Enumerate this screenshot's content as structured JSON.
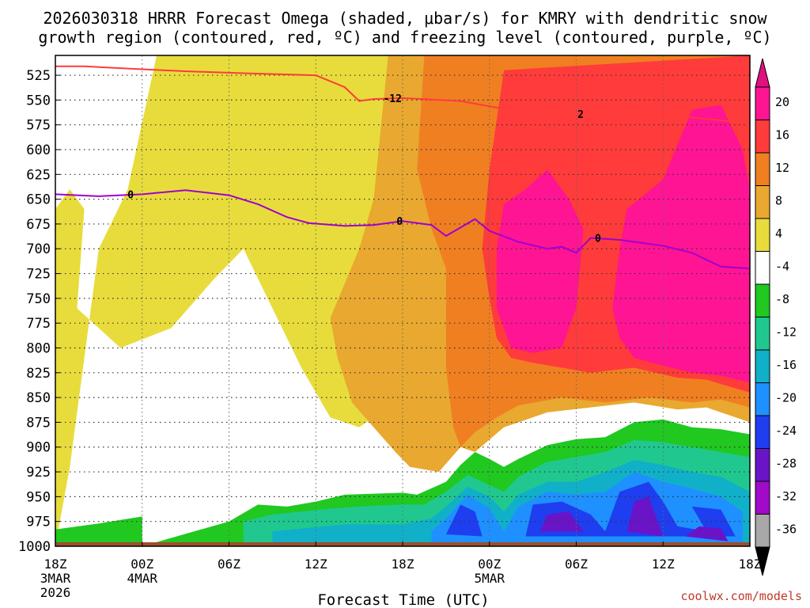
{
  "chart_data": {
    "type": "heatmap",
    "title_line1": "2026030318 HRRR Forecast Omega (shaded, μbar/s) for KMRY with dendritic snow",
    "title_line2": "growth region (contoured, red, ºC) and freezing level (contoured, purple, ºC)",
    "xlabel": "Forecast Time (UTC)",
    "ylabel": "",
    "credit": "coolwx.com/models",
    "x_range_hours": [
      0,
      48
    ],
    "y_range_hpa": [
      1000,
      505
    ],
    "y_ticks": [
      525,
      550,
      575,
      600,
      625,
      650,
      675,
      700,
      725,
      750,
      775,
      800,
      825,
      850,
      875,
      900,
      925,
      950,
      975,
      1000
    ],
    "x_ticks": [
      {
        "hour": 0,
        "label": "18Z",
        "sub1": "3MAR",
        "sub2": "2026"
      },
      {
        "hour": 6,
        "label": "00Z",
        "sub1": "4MAR",
        "sub2": ""
      },
      {
        "hour": 12,
        "label": "06Z",
        "sub1": "",
        "sub2": ""
      },
      {
        "hour": 18,
        "label": "12Z",
        "sub1": "",
        "sub2": ""
      },
      {
        "hour": 24,
        "label": "18Z",
        "sub1": "",
        "sub2": ""
      },
      {
        "hour": 30,
        "label": "00Z",
        "sub1": "5MAR",
        "sub2": ""
      },
      {
        "hour": 36,
        "label": "06Z",
        "sub1": "",
        "sub2": ""
      },
      {
        "hour": 42,
        "label": "12Z",
        "sub1": "",
        "sub2": ""
      },
      {
        "hour": 48,
        "label": "18Z",
        "sub1": "",
        "sub2": ""
      }
    ],
    "colorbar": {
      "labels": [
        "20",
        "16",
        "12",
        "8",
        "4",
        "-4",
        "-8",
        "-12",
        "-16",
        "-20",
        "-24",
        "-28",
        "-32",
        "-36"
      ],
      "colors": [
        "#ff1493",
        "#ff3b3b",
        "#f07f22",
        "#e9a82f",
        "#e8dc3c",
        "#ffffff",
        "#20c820",
        "#20c890",
        "#10b0c8",
        "#1e90ff",
        "#1e3ef0",
        "#6a14c8",
        "#a00ac8",
        "#a8a8a8"
      ],
      "over_color": "#e0107f",
      "under_color": "#000000"
    },
    "series": [
      {
        "name": "dendritic snow growth -12°C",
        "color": "#ff3b3b",
        "label": "-12",
        "points": [
          [
            0,
            516
          ],
          [
            2,
            516
          ],
          [
            6,
            519
          ],
          [
            9,
            521
          ],
          [
            13,
            523
          ],
          [
            18,
            525
          ],
          [
            20,
            537
          ],
          [
            21,
            551
          ],
          [
            22,
            549
          ],
          [
            24,
            548
          ],
          [
            28,
            551
          ],
          [
            31,
            559
          ],
          [
            36,
            564
          ],
          [
            38,
            565
          ],
          [
            40,
            563
          ],
          [
            43,
            566
          ],
          [
            47,
            572
          ],
          [
            48,
            575
          ]
        ]
      },
      {
        "name": "dendritic snow growth contour 2",
        "color": "#ff3b3b",
        "label": "2",
        "points": [
          [
            36,
            564
          ]
        ]
      },
      {
        "name": "freezing level 0°C",
        "color": "#a000d0",
        "label": "0",
        "points": [
          [
            0,
            645
          ],
          [
            3,
            647
          ],
          [
            6,
            645
          ],
          [
            9,
            641
          ],
          [
            12,
            646
          ],
          [
            14,
            655
          ],
          [
            16,
            668
          ],
          [
            17.5,
            674
          ],
          [
            20,
            677
          ],
          [
            22,
            676
          ],
          [
            24,
            672
          ],
          [
            26,
            676
          ],
          [
            27,
            687
          ],
          [
            29,
            670
          ],
          [
            30,
            682
          ],
          [
            32,
            693
          ],
          [
            34,
            700
          ],
          [
            35,
            698
          ],
          [
            36,
            704
          ],
          [
            37,
            689
          ],
          [
            39,
            691
          ],
          [
            42,
            697
          ],
          [
            44,
            704
          ],
          [
            46,
            718
          ],
          [
            48,
            720
          ]
        ]
      }
    ],
    "omega_regions": [
      {
        "value": 4,
        "color": "#e8dc3c",
        "points": [
          [
            -0.5,
            1000
          ],
          [
            -0.5,
            660
          ],
          [
            1,
            640
          ],
          [
            2,
            660
          ],
          [
            1.5,
            760
          ],
          [
            4.5,
            800
          ],
          [
            8,
            780
          ],
          [
            11,
            730
          ],
          [
            13,
            700
          ],
          [
            15,
            760
          ],
          [
            17,
            820
          ],
          [
            19,
            870
          ],
          [
            21,
            880
          ],
          [
            23,
            860
          ],
          [
            25,
            900
          ],
          [
            27,
            900
          ],
          [
            28,
            890
          ],
          [
            30,
            880
          ],
          [
            31,
            870
          ],
          [
            33,
            860
          ],
          [
            35,
            855
          ],
          [
            38,
            855
          ],
          [
            40,
            852
          ],
          [
            42,
            855
          ],
          [
            45,
            860
          ],
          [
            48,
            862
          ],
          [
            48,
            505
          ],
          [
            7,
            505
          ],
          [
            5,
            640
          ],
          [
            3,
            700
          ],
          [
            1,
            920
          ]
        ]
      },
      {
        "value": 8,
        "color": "#e9a82f",
        "points": [
          [
            23,
            505
          ],
          [
            48,
            505
          ],
          [
            48,
            875
          ],
          [
            45,
            860
          ],
          [
            43,
            862
          ],
          [
            40,
            855
          ],
          [
            37,
            860
          ],
          [
            34,
            865
          ],
          [
            31,
            880
          ],
          [
            29,
            905
          ],
          [
            28,
            900
          ],
          [
            26.5,
            925
          ],
          [
            24.5,
            920
          ],
          [
            23.5,
            905
          ],
          [
            22,
            880
          ],
          [
            20.5,
            855
          ],
          [
            19.5,
            810
          ],
          [
            19,
            770
          ],
          [
            20,
            735
          ],
          [
            21,
            700
          ],
          [
            22,
            650
          ]
        ]
      },
      {
        "value": 12,
        "color": "#f07f22",
        "points": [
          [
            25.5,
            505
          ],
          [
            48,
            505
          ],
          [
            48,
            860
          ],
          [
            46,
            852
          ],
          [
            44,
            855
          ],
          [
            41,
            850
          ],
          [
            38,
            855
          ],
          [
            35,
            850
          ],
          [
            32,
            858
          ],
          [
            30.5,
            870
          ],
          [
            29,
            885
          ],
          [
            28,
            900
          ],
          [
            27.5,
            880
          ],
          [
            27,
            820
          ],
          [
            27,
            760
          ],
          [
            27,
            720
          ],
          [
            26,
            680
          ],
          [
            25,
            620
          ]
        ]
      },
      {
        "value": 16,
        "color": "#ff3b3b",
        "points": [
          [
            31,
            520
          ],
          [
            48,
            505
          ],
          [
            48,
            845
          ],
          [
            45,
            832
          ],
          [
            43,
            830
          ],
          [
            40,
            820
          ],
          [
            37,
            825
          ],
          [
            35,
            820
          ],
          [
            33,
            815
          ],
          [
            31.5,
            810
          ],
          [
            30.5,
            790
          ],
          [
            30,
            750
          ],
          [
            29.5,
            700
          ],
          [
            30,
            620
          ]
        ]
      },
      {
        "value": 20,
        "color": "#ff1493",
        "points": [
          [
            39.5,
            660
          ],
          [
            42,
            630
          ],
          [
            44,
            560
          ],
          [
            46,
            555
          ],
          [
            47.5,
            600
          ],
          [
            48,
            640
          ],
          [
            48,
            835
          ],
          [
            46,
            828
          ],
          [
            44,
            825
          ],
          [
            42,
            818
          ],
          [
            40,
            810
          ],
          [
            39,
            790
          ],
          [
            38.5,
            760
          ],
          [
            39,
            700
          ]
        ]
      },
      {
        "value": 20,
        "color": "#ff1493",
        "points": [
          [
            31,
            655
          ],
          [
            32.5,
            640
          ],
          [
            34,
            620
          ],
          [
            35.5,
            650
          ],
          [
            36.5,
            680
          ],
          [
            36,
            760
          ],
          [
            35,
            800
          ],
          [
            33,
            805
          ],
          [
            31.5,
            800
          ],
          [
            30.5,
            760
          ],
          [
            30.5,
            700
          ]
        ]
      },
      {
        "value": -4,
        "color": "#20c820",
        "points": [
          [
            -0.5,
            1000
          ],
          [
            0,
            983
          ],
          [
            3,
            977
          ],
          [
            6,
            970
          ],
          [
            6,
            1000
          ],
          [
            12,
            975
          ],
          [
            14,
            958
          ],
          [
            16,
            960
          ],
          [
            18,
            955
          ],
          [
            20,
            948
          ],
          [
            22,
            947
          ],
          [
            24,
            946
          ],
          [
            25,
            948
          ],
          [
            27,
            935
          ],
          [
            28,
            918
          ],
          [
            29,
            905
          ],
          [
            30,
            912
          ],
          [
            31,
            920
          ],
          [
            32,
            912
          ],
          [
            34,
            898
          ],
          [
            36,
            892
          ],
          [
            38,
            890
          ],
          [
            40,
            875
          ],
          [
            42,
            872
          ],
          [
            44,
            880
          ],
          [
            46,
            882
          ],
          [
            48,
            887
          ],
          [
            48,
            1000
          ]
        ]
      },
      {
        "value": -8,
        "color": "#20c890",
        "points": [
          [
            13,
            975
          ],
          [
            15,
            968
          ],
          [
            17,
            965
          ],
          [
            19,
            962
          ],
          [
            21,
            960
          ],
          [
            24,
            958
          ],
          [
            25.5,
            958
          ],
          [
            27,
            945
          ],
          [
            28.5,
            928
          ],
          [
            29.5,
            935
          ],
          [
            31,
            945
          ],
          [
            32,
            930
          ],
          [
            34,
            915
          ],
          [
            36,
            910
          ],
          [
            38,
            905
          ],
          [
            40,
            893
          ],
          [
            42,
            895
          ],
          [
            44,
            900
          ],
          [
            46,
            905
          ],
          [
            48,
            910
          ],
          [
            48,
            1000
          ],
          [
            13,
            1000
          ]
        ]
      },
      {
        "value": -12,
        "color": "#10b0c8",
        "points": [
          [
            15,
            985
          ],
          [
            20,
            978
          ],
          [
            24,
            978
          ],
          [
            26,
            972
          ],
          [
            27,
            960
          ],
          [
            28.5,
            940
          ],
          [
            30,
            950
          ],
          [
            31,
            965
          ],
          [
            32,
            948
          ],
          [
            34,
            935
          ],
          [
            36,
            935
          ],
          [
            38,
            925
          ],
          [
            40,
            913
          ],
          [
            42,
            918
          ],
          [
            44,
            925
          ],
          [
            46,
            930
          ],
          [
            48,
            945
          ],
          [
            48,
            1000
          ],
          [
            15,
            1000
          ]
        ]
      },
      {
        "value": -16,
        "color": "#1e90ff",
        "points": [
          [
            26,
            985
          ],
          [
            27,
            972
          ],
          [
            28.5,
            948
          ],
          [
            30,
            962
          ],
          [
            31,
            985
          ],
          [
            32,
            960
          ],
          [
            34,
            945
          ],
          [
            36,
            948
          ],
          [
            38,
            945
          ],
          [
            40,
            925
          ],
          [
            42,
            935
          ],
          [
            44,
            942
          ],
          [
            46,
            950
          ],
          [
            47.5,
            965
          ],
          [
            47.5,
            1000
          ],
          [
            26,
            1000
          ]
        ]
      },
      {
        "value": -20,
        "color": "#1e3ef0",
        "points": [
          [
            27,
            988
          ],
          [
            28,
            958
          ],
          [
            29,
            965
          ],
          [
            29.5,
            990
          ]
        ]
      },
      {
        "value": -20,
        "color": "#1e3ef0",
        "points": [
          [
            32.5,
            990
          ],
          [
            33,
            958
          ],
          [
            35,
            955
          ],
          [
            37,
            968
          ],
          [
            38,
            985
          ],
          [
            39,
            945
          ],
          [
            41,
            935
          ],
          [
            42,
            955
          ],
          [
            43,
            980
          ],
          [
            45,
            985
          ],
          [
            44,
            960
          ],
          [
            46,
            963
          ],
          [
            47,
            990
          ]
        ]
      },
      {
        "value": -24,
        "color": "#6a14c8",
        "points": [
          [
            33.5,
            985
          ],
          [
            34,
            968
          ],
          [
            35.5,
            965
          ],
          [
            36.5,
            985
          ]
        ]
      },
      {
        "value": -24,
        "color": "#6a14c8",
        "points": [
          [
            39.5,
            985
          ],
          [
            40,
            955
          ],
          [
            41,
            950
          ],
          [
            41.5,
            970
          ],
          [
            42,
            990
          ]
        ]
      },
      {
        "value": -24,
        "color": "#6a14c8",
        "points": [
          [
            43.5,
            990
          ],
          [
            44.5,
            980
          ],
          [
            46,
            982
          ],
          [
            46.5,
            995
          ]
        ]
      }
    ],
    "terrain": {
      "color": "#9b4f2a",
      "pressure_hpa": 1000
    }
  }
}
